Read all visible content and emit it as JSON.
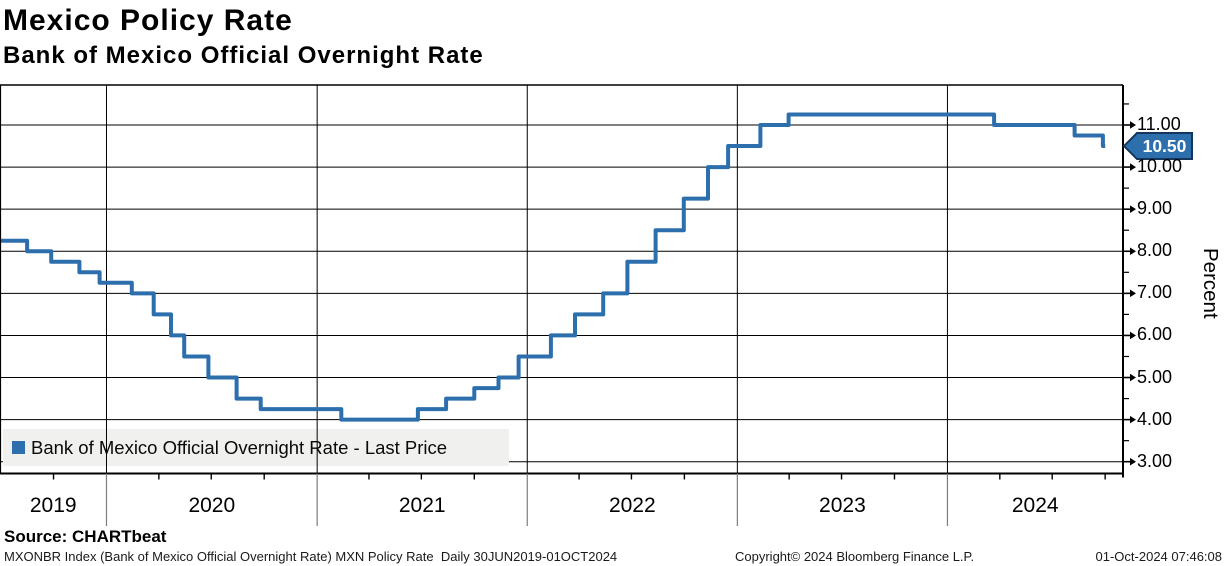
{
  "header": {
    "title": "Mexico Policy Rate",
    "subtitle": "Bank of Mexico Official Overnight Rate"
  },
  "chart_data": {
    "type": "line",
    "line_style": "step-after",
    "title": "Mexico Policy Rate",
    "ylabel": "Percent",
    "ylim": [
      2.72,
      11.95
    ],
    "y_major_ticks": [
      3,
      4,
      5,
      6,
      7,
      8,
      9,
      10,
      11
    ],
    "y_minor_ticks": [
      3.5,
      4.5,
      5.5,
      6.5,
      7.5,
      8.5,
      9.5,
      10.5,
      11.5
    ],
    "x_domain": [
      "2019-06-30",
      "2024-11-01"
    ],
    "x_year_boundaries": [
      "2020-01-01",
      "2021-01-01",
      "2022-01-01",
      "2023-01-01",
      "2024-01-01"
    ],
    "x_year_labels": [
      "2019",
      "2020",
      "2021",
      "2022",
      "2023",
      "2024"
    ],
    "x_quarter_ticks": [
      "2019-10-01",
      "2020-04-01",
      "2020-07-01",
      "2020-10-01",
      "2021-04-01",
      "2021-07-01",
      "2021-10-01",
      "2022-04-01",
      "2022-07-01",
      "2022-10-01",
      "2023-04-01",
      "2023-07-01",
      "2023-10-01",
      "2024-04-01",
      "2024-07-01",
      "2024-10-01"
    ],
    "grid": true,
    "legend": {
      "position": "bottom-left",
      "swatch_color": "#2d6fad",
      "label": "Bank of Mexico Official Overnight Rate - Last Price"
    },
    "last_price": 10.5,
    "last_price_label": "10.50",
    "series": [
      {
        "name": "Bank of Mexico Official Overnight Rate - Last Price",
        "color": "#2d6fad",
        "end_date": "2024-10-01",
        "points": [
          [
            "2019-06-30",
            8.25
          ],
          [
            "2019-08-16",
            8.0
          ],
          [
            "2019-09-27",
            7.75
          ],
          [
            "2019-11-15",
            7.5
          ],
          [
            "2019-12-20",
            7.25
          ],
          [
            "2020-02-14",
            7.0
          ],
          [
            "2020-03-23",
            6.5
          ],
          [
            "2020-04-22",
            6.0
          ],
          [
            "2020-05-15",
            5.5
          ],
          [
            "2020-06-26",
            5.0
          ],
          [
            "2020-08-14",
            4.5
          ],
          [
            "2020-09-25",
            4.25
          ],
          [
            "2021-02-12",
            4.0
          ],
          [
            "2021-06-25",
            4.25
          ],
          [
            "2021-08-13",
            4.5
          ],
          [
            "2021-10-01",
            4.75
          ],
          [
            "2021-11-12",
            5.0
          ],
          [
            "2021-12-17",
            5.5
          ],
          [
            "2022-02-11",
            6.0
          ],
          [
            "2022-03-25",
            6.5
          ],
          [
            "2022-05-13",
            7.0
          ],
          [
            "2022-06-24",
            7.75
          ],
          [
            "2022-08-12",
            8.5
          ],
          [
            "2022-09-30",
            9.25
          ],
          [
            "2022-11-11",
            10.0
          ],
          [
            "2022-12-16",
            10.5
          ],
          [
            "2023-02-10",
            11.0
          ],
          [
            "2023-03-31",
            11.25
          ],
          [
            "2024-03-22",
            11.0
          ],
          [
            "2024-08-09",
            10.75
          ],
          [
            "2024-09-27",
            10.5
          ]
        ]
      }
    ]
  },
  "colors": {
    "line": "#2d6fad",
    "tag_fill": "#2d6fad",
    "tag_border": "#14365c",
    "grid": "#000000",
    "year_separator": "#7d7d7d",
    "legend_bg": "#f0f0ee",
    "background": "#ffffff"
  },
  "footer": {
    "source": "Source: CHARTbeat",
    "index_line": "MXONBR Index (Bank of Mexico Official Overnight Rate) MXN Policy Rate  Daily 30JUN2019-01OCT2024",
    "copyright": "Copyright© 2024 Bloomberg Finance L.P.",
    "timestamp": "01-Oct-2024 07:46:08"
  }
}
